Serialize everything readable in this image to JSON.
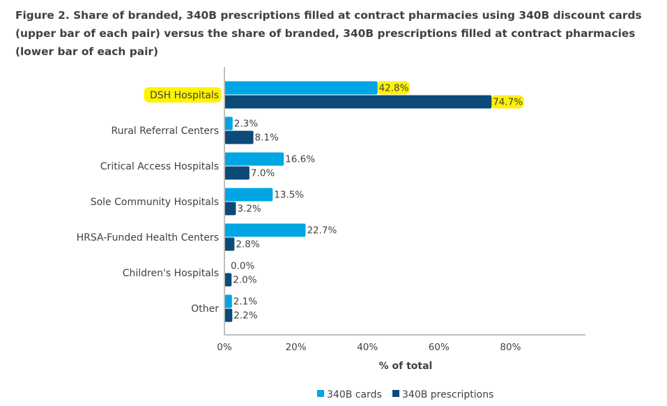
{
  "chart_data": {
    "type": "bar",
    "orientation": "horizontal",
    "title": "Figure 2. Share of branded, 340B prescriptions filled at contract pharmacies using 340B discount cards (upper bar of each pair) versus the share of branded, 340B prescriptions filled at contract pharmacies (lower bar of each pair)",
    "categories": [
      "DSH Hospitals",
      "Rural Referral Centers",
      "Critical Access Hospitals",
      "Sole Community Hospitals",
      "HRSA-Funded Health Centers",
      "Children's Hospitals",
      "Other"
    ],
    "series": [
      {
        "name": "340B cards",
        "color": "#00a6e3",
        "values": [
          42.8,
          2.3,
          16.6,
          13.5,
          22.7,
          0.0,
          2.1
        ],
        "labels": [
          "42.8%",
          "2.3%",
          "16.6%",
          "13.5%",
          "22.7%",
          "0.0%",
          "2.1%"
        ]
      },
      {
        "name": "340B prescriptions",
        "color": "#0b4a79",
        "values": [
          74.7,
          8.1,
          7.0,
          3.2,
          2.8,
          2.0,
          2.2
        ],
        "labels": [
          "74.7%",
          "8.1%",
          "7.0%",
          "3.2%",
          "2.8%",
          "2.0%",
          "2.2%"
        ]
      }
    ],
    "xlabel": "% of total",
    "xlim": [
      0,
      100
    ],
    "xticks": [
      0,
      20,
      40,
      60,
      80
    ],
    "xtick_labels": [
      "0%",
      "20%",
      "40%",
      "60%",
      "80%"
    ],
    "highlighted_category": "DSH Hospitals",
    "highlight_color": "#fff200",
    "legend_position": "bottom"
  }
}
